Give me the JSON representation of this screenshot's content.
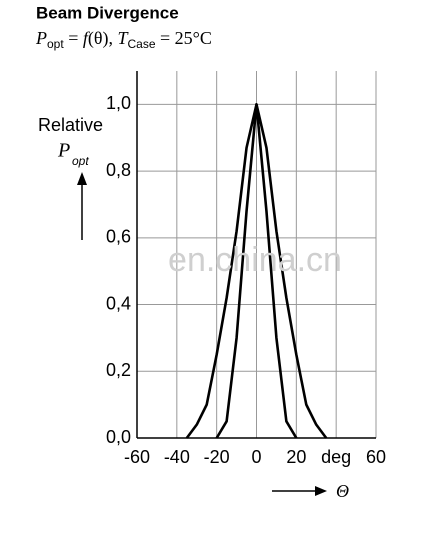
{
  "chart_data": {
    "type": "line",
    "title": "Beam Divergence",
    "subtitle_parts": [
      "P",
      "opt",
      " = ",
      "f",
      "(θ), ",
      "T",
      "Case",
      " = 25°C"
    ],
    "y_label": "Relative",
    "y_label_symbol": "P",
    "y_label_sub": "opt",
    "x_label": "Θ",
    "watermark": "en.china.cn",
    "x": [
      -35,
      -30,
      -25,
      -20,
      -15,
      -10,
      -5,
      0,
      5,
      10,
      15,
      20,
      25,
      30,
      35
    ],
    "series": [
      {
        "color": "#000000",
        "values": [
          0,
          0.04,
          0.1,
          0.25,
          0.42,
          0.62,
          0.87,
          1.0,
          0.87,
          0.62,
          0.42,
          0.25,
          0.1,
          0.04,
          0
        ]
      },
      {
        "color": "#000000",
        "values": [
          null,
          null,
          null,
          0,
          0.05,
          0.3,
          0.68,
          1.0,
          0.68,
          0.3,
          0.05,
          0,
          null,
          null,
          null
        ]
      }
    ],
    "xlim": [
      -60,
      60
    ],
    "ylim": [
      0,
      1.1
    ],
    "xticks": [
      -60,
      -40,
      -20,
      0,
      20,
      {
        "value": 40,
        "label": "deg"
      },
      60
    ],
    "yticks": [
      {
        "value": 0,
        "label": "0,0"
      },
      {
        "value": 0.2,
        "label": "0,2"
      },
      {
        "value": 0.4,
        "label": "0,4"
      },
      {
        "value": 0.6,
        "label": "0,6"
      },
      {
        "value": 0.8,
        "label": "0,8"
      },
      {
        "value": 1.0,
        "label": "1,0"
      }
    ],
    "grid": true
  }
}
